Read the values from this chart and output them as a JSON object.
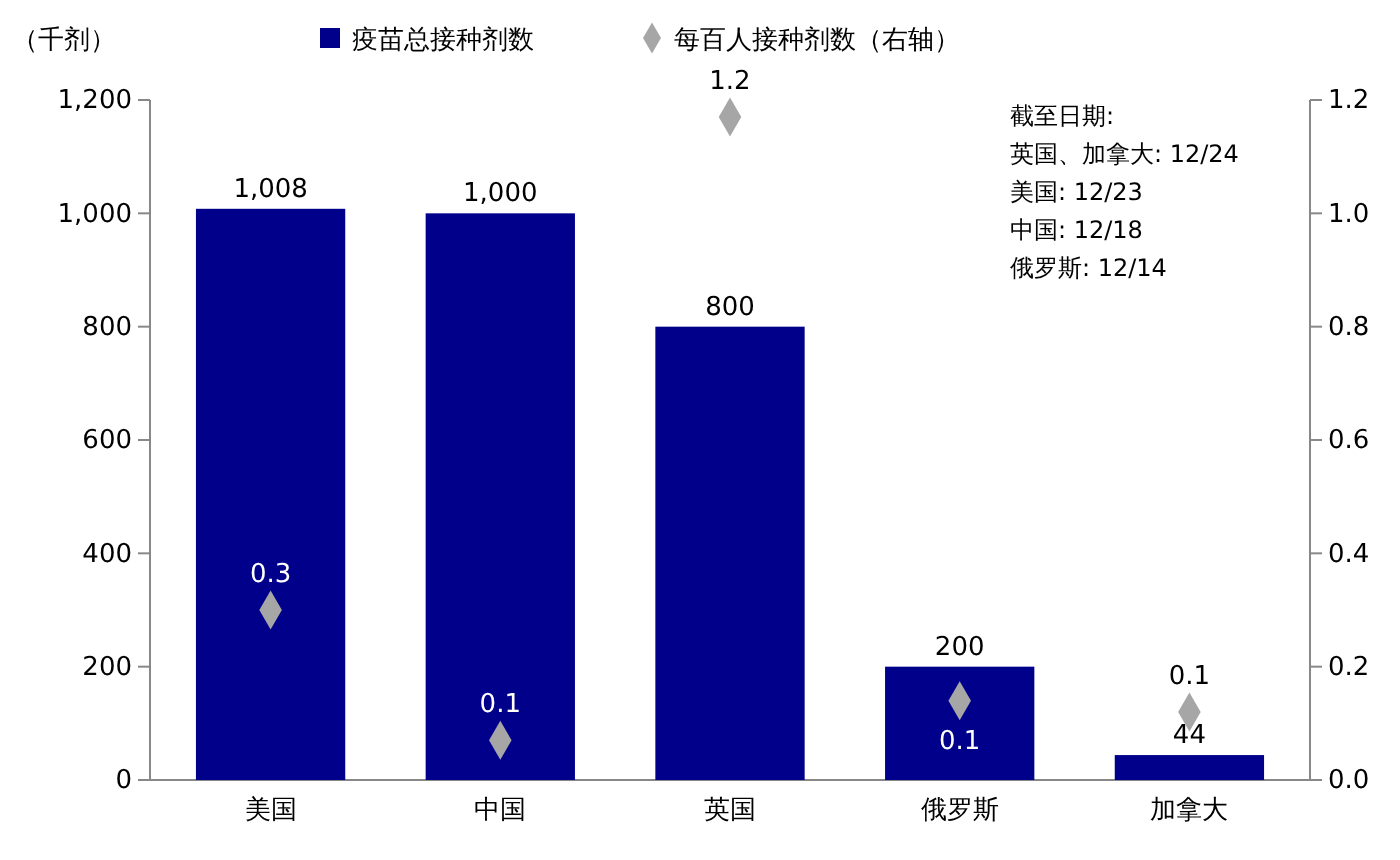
{
  "chart_data": {
    "type": "bar",
    "ylabel": "（千剂）",
    "categories": [
      "美国",
      "中国",
      "英国",
      "俄罗斯",
      "加拿大"
    ],
    "series": [
      {
        "name": "疫苗总接种剂数",
        "color": "#00008b",
        "values": [
          1008,
          1000,
          800,
          200,
          44
        ],
        "value_labels": [
          "1,008",
          "1,000",
          "800",
          "200",
          "44"
        ]
      },
      {
        "name": "每百人接种剂数（右轴）",
        "type": "scatter",
        "axis": "y2",
        "color": "#a6a6a6",
        "values": [
          0.3,
          0.07,
          1.17,
          0.14,
          0.12
        ],
        "value_labels": [
          "0.3",
          "0.1",
          "1.2",
          "0.1",
          "0.1"
        ]
      }
    ],
    "ylim": [
      0,
      1200
    ],
    "yticks": [
      0,
      200,
      400,
      600,
      800,
      {
        "value": 1000,
        "label": "1,000"
      },
      {
        "value": 1200,
        "label": "1,200"
      }
    ],
    "y2lim": [
      0,
      1.2
    ],
    "y2ticks": [
      {
        "value": 0,
        "label": "0.0"
      },
      {
        "value": 0.2,
        "label": "0.2"
      },
      {
        "value": 0.4,
        "label": "0.4"
      },
      {
        "value": 0.6,
        "label": "0.6"
      },
      {
        "value": 0.8,
        "label": "0.8"
      },
      {
        "value": 1,
        "label": "1.0"
      },
      {
        "value": 1.2,
        "label": "1.2"
      }
    ],
    "marker": "diamond",
    "legend": "top",
    "grid": false,
    "annotations": [
      "截至日期:",
      "英国、加拿大: 12/24",
      "美国: 12/23",
      "中国: 12/18",
      "俄罗斯: 12/14"
    ]
  }
}
